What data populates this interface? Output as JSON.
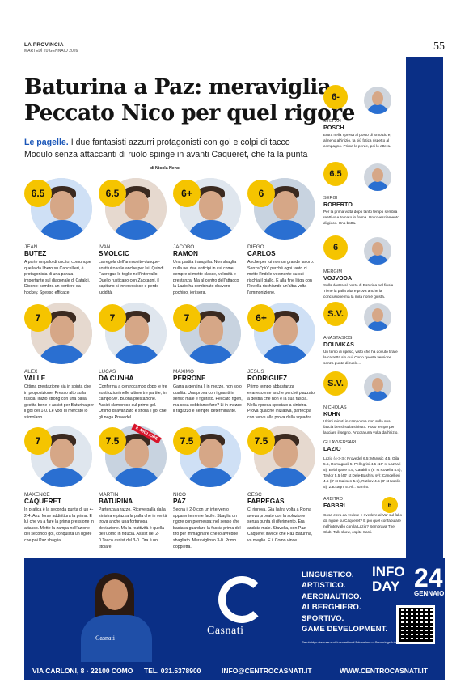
{
  "masthead": {
    "paper": "LA PROVINCIA",
    "date": "MARTEDÌ 20 GENNAIO 2026",
    "page": "55"
  },
  "headline": {
    "line1": "Baturina a Paz: meraviglia",
    "line2": "Peccato Nico per quel rigore"
  },
  "deck": {
    "lead": "Le pagelle.",
    "text": " I due fantasisti azzurri protagonisti con gol e colpi di tacco Modulo senza attaccanti di ruolo spinge in avanti Caqueret, che fa la punta"
  },
  "byline": "di Nicola Nenci",
  "players": [
    {
      "grade": "6.5",
      "first": "JEAN",
      "last": "BUTEZ",
      "text": "A parte un palo di uscito, comunque quella da libero su Cancellieri, è protagonista di una parata importante sul diagonale di Cataldi. Dicono: sembra un portiere da hockey. Spesso efficace."
    },
    {
      "grade": "6.5",
      "first": "IVAN",
      "last": "SMOLCIC",
      "text": "La regola dell'ammonito-dunque-sostituito vale anche per lui. Quindi Fabregas lo toglie nell'intervallo. Duello rusticano con Zaccagni, il capitano si innervosisce e perde lucidità."
    },
    {
      "grade": "6+",
      "first": "JACOBO",
      "last": "RAMON",
      "text": "Una partita tranquilla. Non sbaglia nulla nei due anticipi in cui come sempre ci mette classe, velocità e prestanza. Ma al centro dell'attacco la Lazio ha combinato davvero pochino, ieri sera."
    },
    {
      "grade": "6",
      "first": "DIEGO",
      "last": "CARLOS",
      "text": "Anche per lui non un grande lavoro. Senza \"più\" perché ogni tanto ci mette l'indole veemente su cui rischia il giallo. E alla fine litiga con Rovella rischiando un'altra volta l'ammonizione."
    },
    {
      "grade": "7",
      "first": "ALEX",
      "last": "VALLE",
      "text": "Ottima prestazione sia in spinta che in proposizione. Presso alto sulla fascia. Inizio strong con una palla gestita bene e assist per Baturina per il gol del 1-0. Le voci di mercato lo stimolano."
    },
    {
      "grade": "7",
      "first": "LUCAS",
      "last": "DA CUNHA",
      "text": "Conferma a centrocampo dopo le tre sostituzioni nelle ultime tre partite, in campo 90'. Buona prestazione. Assist clamoroso sul primo gol. Ottimo di avanzato e sfiora il gol che gli nega Provedel."
    },
    {
      "grade": "7",
      "first": "MAXIMO",
      "last": "PERRONE",
      "text": "Garra argentina li in mezzo, non solo qualità. Una prova con i guanti in senso male e figurato. Peccato rigeri, ma cosa dobbiamo fare? Li in mezzo il ragazzo è sempre determinante."
    },
    {
      "grade": "6+",
      "first": "JESUS",
      "last": "RODRIGUEZ",
      "text": "Primo tempo abbastanza evanescente anche perché piazzato a destra che non è la sua fascia. Nella ripresa spostato a sinistra. Prova qualche iniziativa, partecipa con verve alla prova della squadra."
    },
    {
      "grade": "7",
      "first": "MAXENCE",
      "last": "CAQUERET",
      "text": "In pratica è la seconda punta di un 4-2-4. Anzi forse addirittura la prima. E lui che va a fare la prima pressione in attacco. Mette la zampa nell'azione del secondo gol, conquista un rigore che poi Paz sbaglia."
    },
    {
      "grade": "7.5",
      "first": "MARTIN",
      "last": "BATURINA",
      "badge": "IL MIGLIORE",
      "text": "Partenza a razzo. Riceve palla dalla sinistra e piazza la palla che in verità trova anche una fortunosa deviazione. Ma la reattività è quella dell'uomo in fiducia. Assist del 2-0.Tacco assist del 3-0. Ora è un titolare."
    },
    {
      "grade": "7.5",
      "first": "NICO",
      "last": "PAZ",
      "text": "Segna il 2-0 con un intervento apparentemente facile. Sbaglia un rigore con premessa: nel senso che bastava guardare la faccia prima del tiro per immaginare che lo avrebbe sbagliato. Meraviglioso 3-0. Primo doppietta."
    },
    {
      "grade": "7.5",
      "first": "CESC",
      "last": "FABREGAS",
      "text": "Ci riprova. Già l'altra volta a Roma aveva provato con la soluzione senza punta di riferimento. Era andata male. Stavolta, con Paz Caqueret invece che Paz Baturina, va meglio. E il Como vince."
    }
  ],
  "sidebar": [
    {
      "grade": "6-",
      "first": "STEFAN",
      "last": "POSCH",
      "text": "Entra nella ripresa al posto di Smolcic e, almeno all'inizio, fa più fatica rispetto al compagno. Prima lo perde, poi lo attera."
    },
    {
      "grade": "6.5",
      "first": "SERGI",
      "last": "ROBERTO",
      "text": "Per la prima volta dopo tanto tempo sembra reattivo e tornato in forma. Un rovesciamento di gioco. Una botta."
    },
    {
      "grade": "6",
      "first": "MERGIM",
      "last": "VOJVODA",
      "text": "Sulla destra al posto di Baturina nel finale. Tiene la palla alta e prova anche la conclusione ma la mira non è giusta."
    },
    {
      "grade": "S.V.",
      "first": "ANASTASIOS",
      "last": "DOUVIKAS",
      "text": "Un temo di ripeso, visto che ha dovuto tirare la carretta sin qui. Corto questa versione senza punte di ruolo..."
    },
    {
      "grade": "S.V.",
      "first": "NICHOLAS",
      "last": "KUHN",
      "text": "Ultimi minuti in campo ma non sulla sua fascia bensì sulla sinistra. Poco tempo per lasciare il segno. Ancora una volta dall'inizio."
    }
  ],
  "avversari": {
    "kicker": "GLI AVVERSARI",
    "team": "LAZIO",
    "text": "Lazio (4-3-3): Provedel 6.5; Marusic 4.5, Gila 5.5, Romagnoli 5, Pellegrini 4.5 (19' st Lazzari 5); Belahyane 4.5, Cataldi 5 (8' st Rovella 4.5), Taylor 5.5 (40' st Dele-Bashiru sv); Cancellieri 4.5 (8' st Isaksen 5.5), Ratkov 4.5 (8' st Noslin 5), Zaccagni 5. All.: Sarri 5."
  },
  "arbitro": {
    "kicker": "ARBITRO",
    "name": "FABBRI",
    "grade": "6",
    "text": "Cosa c'era da vedere e rivedere al Var sul fallo da rigore su Caqueret? E poi quel confabulare nell'intervallo con la Lazio? Sembrava The Club. Talk show, ospite Sarri."
  },
  "ad": {
    "brand": "Casnati",
    "shirt": "Casnati",
    "list": [
      "LINGUISTICO.",
      "ARTISTICO.",
      "AERONAUTICO.",
      "ALBERGHIERO.",
      "SPORTIVO.",
      "GAME DEVELOPMENT."
    ],
    "cambridge": "Cambridge Assessment International Education — Cambridge International School",
    "info1": "INFO",
    "info2": "DAY",
    "day": "24",
    "month": "GENNAIO",
    "address": "VIA CARLONI, 8 · 22100 COMO",
    "tel": "TEL. 031.5378900",
    "email": "INFO@CENTROCASNATI.IT",
    "web": "WWW.CENTROCASNATI.IT"
  },
  "colors": {
    "accent": "#0a2f86",
    "grade": "#f5c400",
    "lead": "#1a56b8",
    "badge": "#d8142a"
  }
}
